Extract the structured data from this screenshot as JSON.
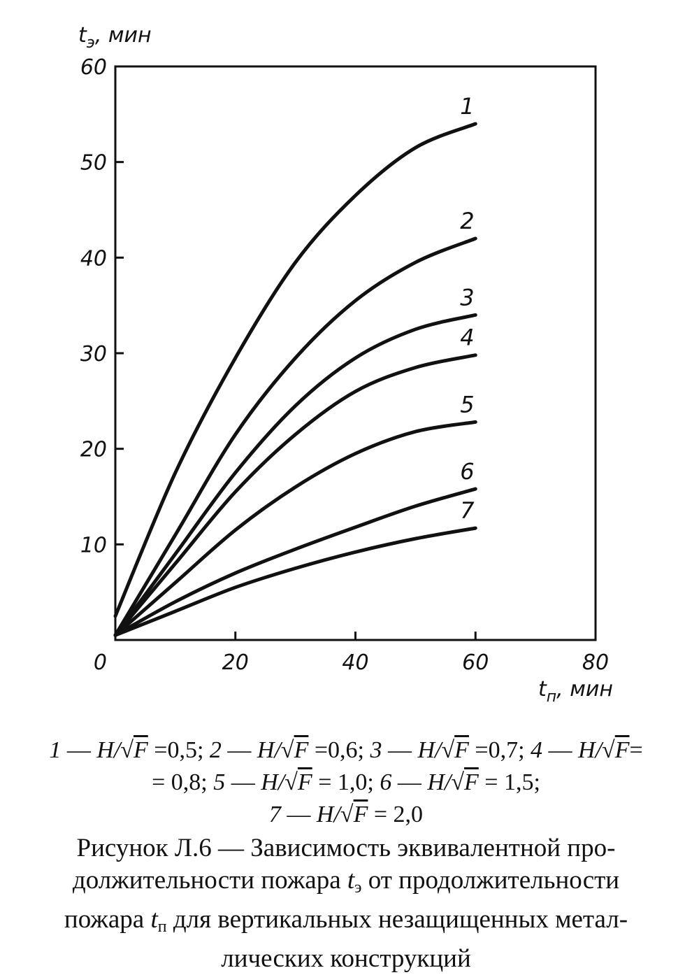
{
  "chart_data": {
    "type": "line",
    "ylabel_var": "t",
    "ylabel_sub": "э",
    "ylabel_unit": ", мин",
    "xlabel_var": "t",
    "xlabel_sub": "п",
    "xlabel_unit": ", мин",
    "xlim": [
      0,
      80
    ],
    "ylim": [
      0,
      60
    ],
    "x_ticks": [
      "0",
      "20",
      "40",
      "60",
      "80"
    ],
    "y_ticks": [
      "10",
      "20",
      "30",
      "40",
      "50",
      "60"
    ],
    "x": [
      0,
      10,
      20,
      30,
      40,
      50,
      60
    ],
    "series": [
      {
        "name": "1",
        "values": [
          2.5,
          17.5,
          29.5,
          39.5,
          46.5,
          51.5,
          54.0
        ]
      },
      {
        "name": "2",
        "values": [
          0.5,
          11.0,
          21.5,
          29.5,
          35.5,
          39.5,
          42.0
        ]
      },
      {
        "name": "3",
        "values": [
          0.5,
          9.0,
          17.5,
          24.5,
          29.5,
          32.5,
          34.0
        ]
      },
      {
        "name": "4",
        "values": [
          0.5,
          8.0,
          15.5,
          21.5,
          26.0,
          28.5,
          29.8
        ]
      },
      {
        "name": "5",
        "values": [
          0.5,
          6.0,
          11.5,
          16.0,
          19.5,
          21.8,
          22.8
        ]
      },
      {
        "name": "6",
        "values": [
          0.5,
          4.0,
          7.0,
          9.5,
          11.8,
          14.0,
          15.8
        ]
      },
      {
        "name": "7",
        "values": [
          0.5,
          3.0,
          5.5,
          7.5,
          9.2,
          10.6,
          11.7
        ]
      }
    ]
  },
  "legend": {
    "line1": [
      {
        "num": "1",
        "value": "=0,5;"
      },
      {
        "num": "2",
        "value": "=0,6;"
      },
      {
        "num": "3",
        "value": "=0,7;"
      },
      {
        "num": "4",
        "value": "="
      }
    ],
    "line2_start": "= 0,8;",
    "line2": [
      {
        "num": "5",
        "value": "= 1,0;"
      },
      {
        "num": "6",
        "value": "= 1,5;"
      }
    ],
    "line3": [
      {
        "num": "7",
        "value": "= 2,0"
      }
    ],
    "dash": " — ",
    "ratio_num": "H/",
    "ratio_den": "F"
  },
  "caption": {
    "prefix": "Рисунок  Л.6  — Зависимость эквивалентной про-",
    "line2_a": "должительности пожара ",
    "line2_var": "t",
    "line2_sub": "э",
    "line2_b": " от продолжительности",
    "line3_a": "пожара ",
    "line3_var": "t",
    "line3_sub": "п",
    "line3_b": " для вертикальных незащищенных метал-",
    "line4": "лических конструкций"
  }
}
